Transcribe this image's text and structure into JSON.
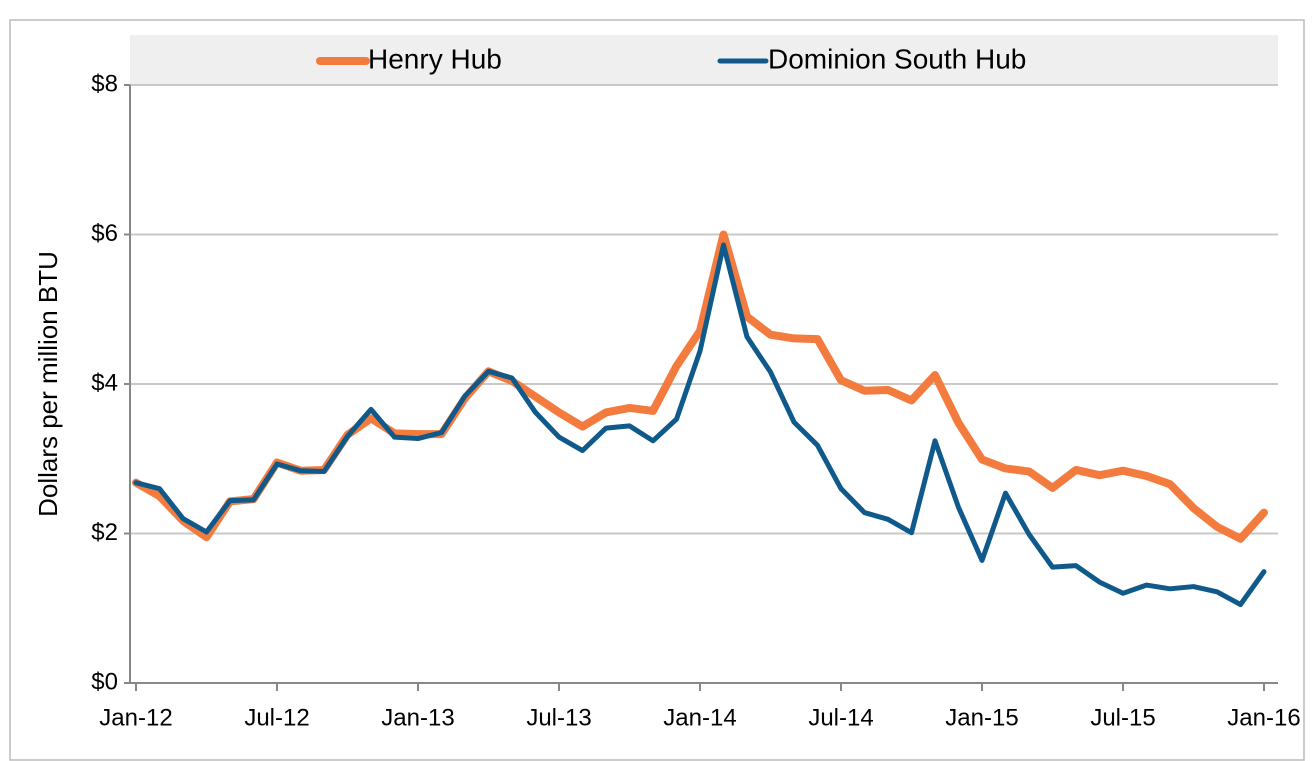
{
  "chart_data": {
    "type": "line",
    "y_label": "Dollars per million BTU",
    "categories": [
      "Jan-12",
      null,
      null,
      null,
      null,
      null,
      "Jul-12",
      null,
      null,
      null,
      null,
      null,
      "Jan-13",
      null,
      null,
      null,
      null,
      null,
      "Jul-13",
      null,
      null,
      null,
      null,
      null,
      "Jan-14",
      null,
      null,
      null,
      null,
      null,
      "Jul-14",
      null,
      null,
      null,
      null,
      null,
      "Jan-15",
      null,
      null,
      null,
      null,
      null,
      "Jul-15",
      null,
      null,
      null,
      null,
      null,
      "Jan-16"
    ],
    "series": [
      {
        "name": "Henry Hub",
        "color": "#f47b3e",
        "values": [
          2.68,
          2.5,
          2.17,
          1.95,
          2.43,
          2.46,
          2.95,
          2.84,
          2.85,
          3.32,
          3.54,
          3.34,
          3.33,
          3.33,
          3.81,
          4.17,
          4.04,
          3.83,
          3.62,
          3.43,
          3.62,
          3.68,
          3.64,
          4.24,
          4.71,
          6.0,
          4.9,
          4.66,
          4.61,
          4.6,
          4.05,
          3.91,
          3.92,
          3.78,
          4.12,
          3.48,
          2.99,
          2.87,
          2.83,
          2.61,
          2.85,
          2.78,
          2.84,
          2.77,
          2.66,
          2.34,
          2.09,
          1.93,
          2.28
        ]
      },
      {
        "name": "Dominion South Hub",
        "color": "#0f5a8a",
        "values": [
          2.68,
          2.6,
          2.2,
          2.02,
          2.44,
          2.45,
          2.93,
          2.84,
          2.83,
          3.3,
          3.66,
          3.29,
          3.27,
          3.35,
          3.84,
          4.17,
          4.08,
          3.62,
          3.29,
          3.11,
          3.41,
          3.44,
          3.24,
          3.53,
          4.44,
          5.86,
          4.63,
          4.16,
          3.49,
          3.18,
          2.6,
          2.28,
          2.19,
          2.01,
          3.24,
          2.35,
          1.64,
          2.54,
          1.99,
          1.55,
          1.57,
          1.35,
          1.2,
          1.31,
          1.26,
          1.29,
          1.22,
          1.05,
          1.49
        ]
      }
    ],
    "ylim": [
      0,
      8
    ],
    "yticks": [
      {
        "value": 0,
        "label": "$0"
      },
      {
        "value": 2,
        "label": "$2"
      },
      {
        "value": 4,
        "label": "$4"
      },
      {
        "value": 6,
        "label": "$6"
      },
      {
        "value": 8,
        "label": "$8"
      }
    ],
    "grid": true,
    "legend": "top"
  }
}
